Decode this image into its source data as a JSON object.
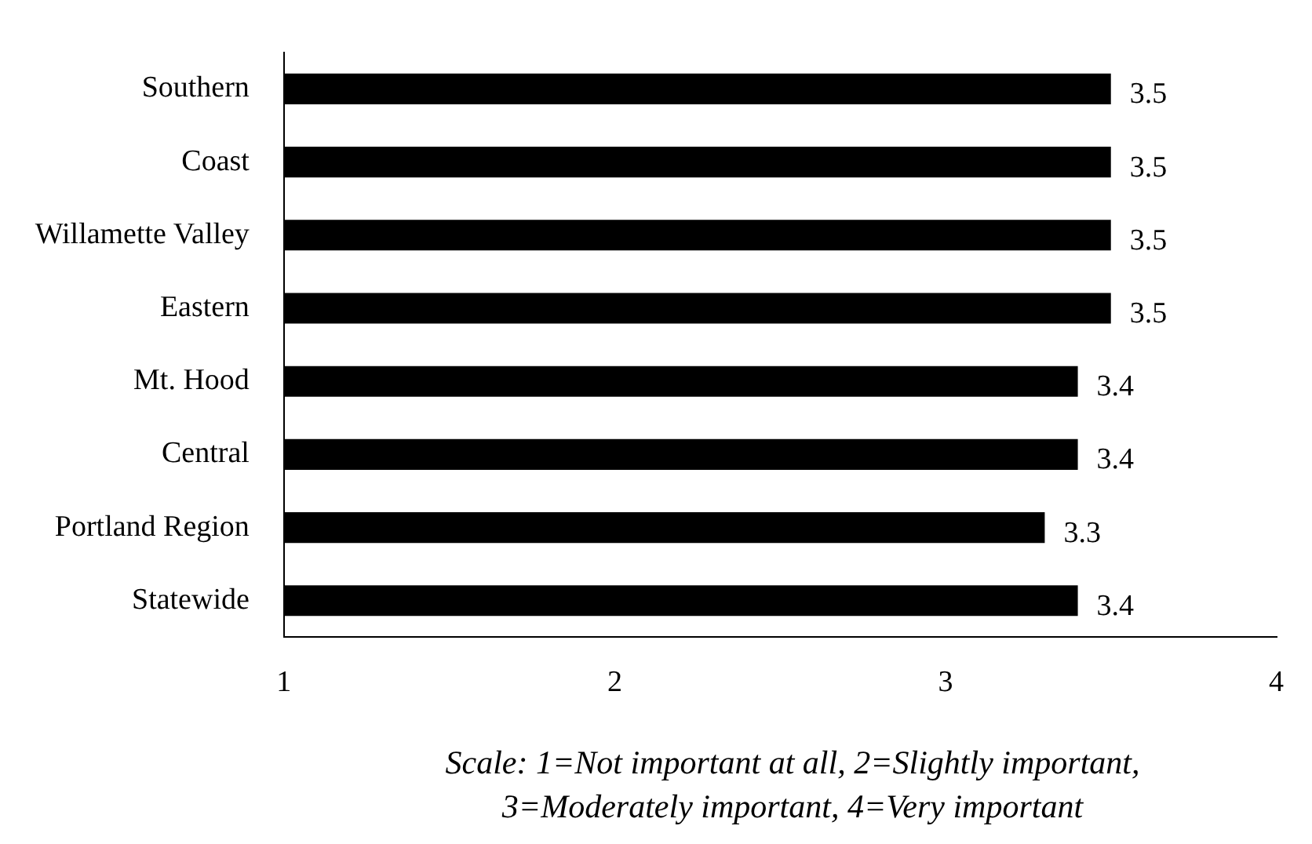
{
  "chart_data": {
    "type": "bar",
    "orientation": "horizontal",
    "categories": [
      "Southern",
      "Coast",
      "Willamette Valley",
      "Eastern",
      "Mt. Hood",
      "Central",
      "Portland Region",
      "Statewide"
    ],
    "values": [
      3.5,
      3.5,
      3.5,
      3.5,
      3.4,
      3.4,
      3.3,
      3.4
    ],
    "color": "#000000",
    "xlim": [
      1,
      4
    ],
    "xticks": [
      1,
      2,
      3,
      4
    ],
    "data_labels": true,
    "grid": false,
    "legend": false,
    "annotations": [
      "Scale: 1=Not important at all, 2=Slightly important,",
      "3=Moderately important, 4=Very important"
    ]
  }
}
